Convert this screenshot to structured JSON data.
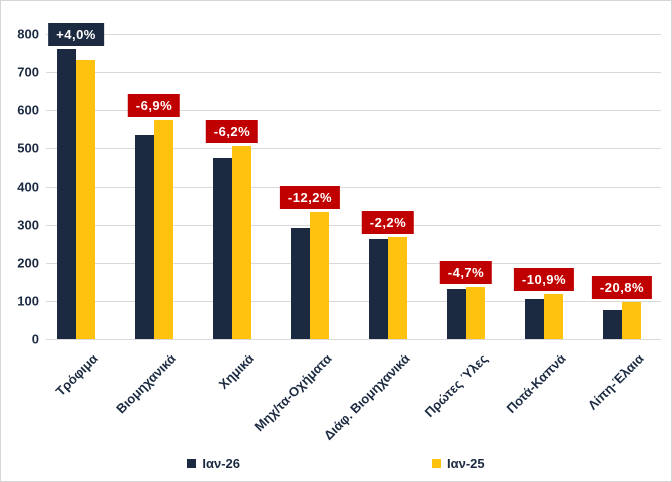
{
  "chart_data": {
    "type": "bar",
    "title": "",
    "xlabel": "",
    "ylabel": "",
    "ylim": [
      0,
      800
    ],
    "ytick_step": 100,
    "grid": true,
    "legend_position": "bottom",
    "categories": [
      "Τρόφιμα",
      "Βιομηχανικά",
      "Χημικά",
      "Μηχ/τα-Οχήματα",
      "Διάφ. Βιομηχανικά",
      "Πρώτες Ύλες",
      "Ποτά-Καπνά",
      "Λίπη-Έλαια"
    ],
    "series": [
      {
        "name": "Ιαν-26",
        "color": "#1b2a41",
        "values": [
          760,
          535,
          475,
          292,
          262,
          130,
          105,
          76
        ]
      },
      {
        "name": "Ιαν-25",
        "color": "#ffc20e",
        "values": [
          731,
          575,
          507,
          333,
          268,
          136,
          118,
          96
        ]
      }
    ],
    "change_labels": [
      {
        "text": "+4,0%",
        "bg": "#1b2a41"
      },
      {
        "text": "-6,9%",
        "bg": "#c00000"
      },
      {
        "text": "-6,2%",
        "bg": "#c00000"
      },
      {
        "text": "-12,2%",
        "bg": "#c00000"
      },
      {
        "text": "-2,2%",
        "bg": "#c00000"
      },
      {
        "text": "-4,7%",
        "bg": "#c00000"
      },
      {
        "text": "-10,9%",
        "bg": "#c00000"
      },
      {
        "text": "-20,8%",
        "bg": "#c00000"
      }
    ],
    "colors": {
      "gridline": "#d9d9d9",
      "tick_text": "#1b2a41",
      "label_text": "#ffffff",
      "background": "#ffffff"
    }
  }
}
